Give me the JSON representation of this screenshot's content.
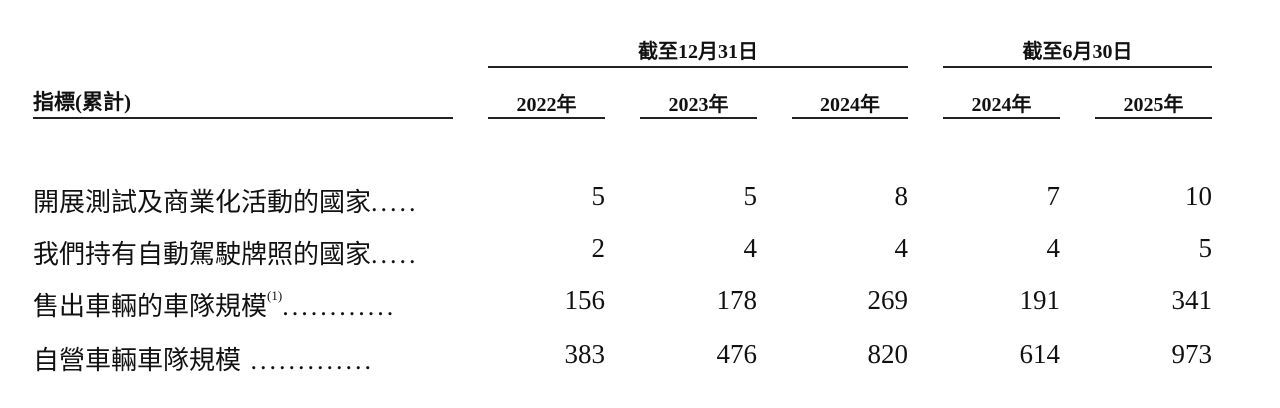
{
  "header": {
    "row_label": "指標(累計)",
    "groups": [
      {
        "label": "截至12月31日"
      },
      {
        "label": "截至6月30日"
      }
    ],
    "years": [
      "2022年",
      "2023年",
      "2024年",
      "2024年",
      "2025年"
    ]
  },
  "rows": [
    {
      "label": "開展測試及商業化活動的國家",
      "note": "",
      "dots": ".....",
      "values": [
        "5",
        "5",
        "8",
        "7",
        "10"
      ]
    },
    {
      "label": "我們持有自動駕駛牌照的國家",
      "note": "",
      "dots": ".....",
      "values": [
        "2",
        "4",
        "4",
        "4",
        "5"
      ]
    },
    {
      "label": "售出車輛的車隊規模",
      "note": "(1)",
      "dots": "............",
      "values": [
        "156",
        "178",
        "269",
        "191",
        "341"
      ]
    },
    {
      "label": "自營車輛車隊規模",
      "note": "",
      "dots": " .............",
      "values": [
        "383",
        "476",
        "820",
        "614",
        "973"
      ]
    }
  ]
}
